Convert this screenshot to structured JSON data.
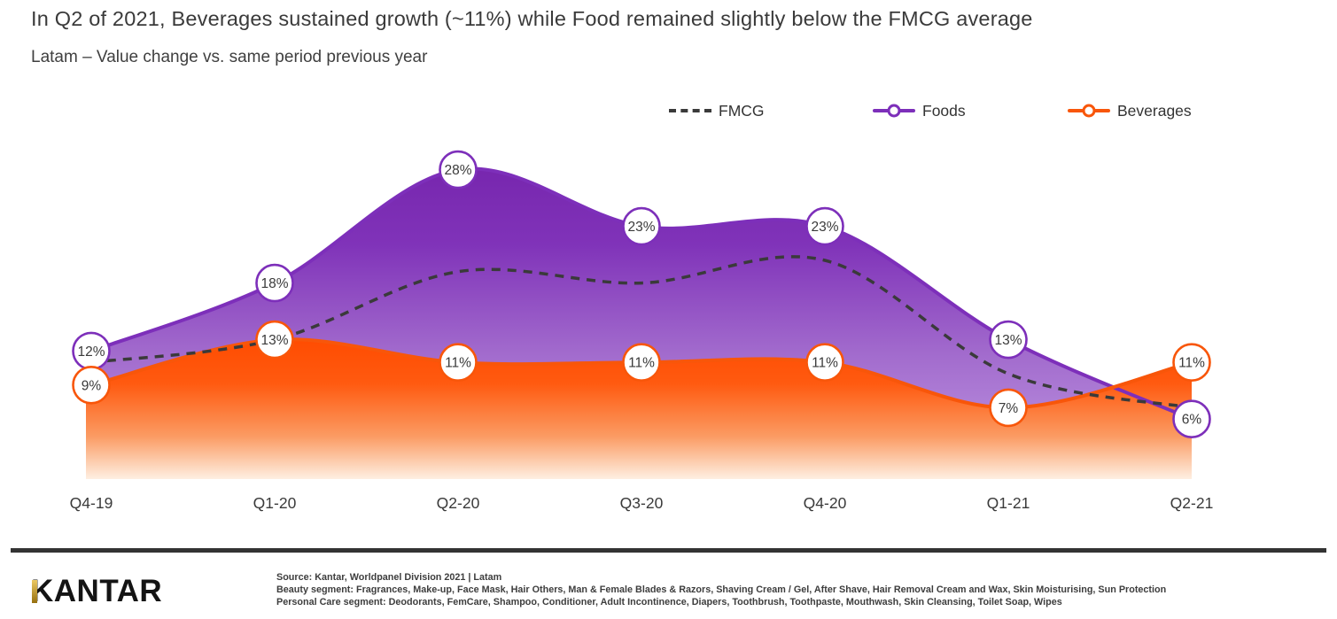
{
  "header": {
    "title": "In Q2 of 2021, Beverages sustained growth (~11%) while Food remained slightly below the FMCG average",
    "subtitle": "Latam – Value change vs. same period previous year"
  },
  "legend": {
    "items": [
      {
        "label": "FMCG",
        "style": "dashed",
        "color": "#3a3a3a"
      },
      {
        "label": "Foods",
        "style": "line-circle",
        "color": "#7d2fba"
      },
      {
        "label": "Beverages",
        "style": "line-circle",
        "color": "#f8560a"
      }
    ]
  },
  "chart_data": {
    "type": "area",
    "title": "Latam – Value change vs. same period previous year",
    "categories": [
      "Q4-19",
      "Q1-20",
      "Q2-20",
      "Q3-20",
      "Q4-20",
      "Q1-21",
      "Q2-21"
    ],
    "unit": "%",
    "ylim": [
      0,
      32
    ],
    "grid": false,
    "legend_position": "top",
    "series": [
      {
        "name": "FMCG",
        "type": "dashed-line",
        "color": "#3a3a3a",
        "values": [
          11,
          13,
          19,
          18,
          20,
          10,
          7
        ],
        "point_labels": false
      },
      {
        "name": "Foods",
        "type": "area-line",
        "color": "#7d2fba",
        "fill_top": "#7726ae",
        "fill_bottom": "#c19ce4",
        "values": [
          12,
          18,
          28,
          23,
          23,
          13,
          6
        ],
        "point_labels": true
      },
      {
        "name": "Beverages",
        "type": "area-line",
        "color": "#f8560a",
        "fill_top": "#ff4b00",
        "fill_bottom": "#feefe2",
        "values": [
          9,
          13,
          11,
          11,
          11,
          7,
          11
        ],
        "point_labels": true
      }
    ]
  },
  "footer": {
    "logo": "KANTAR",
    "source_lines": [
      "Source: Kantar, Worldpanel  Division 2021 | Latam",
      "Beauty segment: Fragrances, Make-up, Face Mask, Hair Others, Man & Female Blades & Razors, Shaving Cream / Gel, After Shave, Hair Removal Cream and Wax, Skin Moisturising, Sun Protection",
      "Personal Care segment: Deodorants, FemCare, Shampoo, Conditioner, Adult Incontinence, Diapers, Toothbrush, Toothpaste, Mouthwash, Skin Cleansing, Toilet Soap, Wipes"
    ]
  },
  "colors": {
    "foods_purple": "#7d2fba",
    "beverages_orange": "#f8560a",
    "fmcg_dark": "#3a3a3a",
    "logo_gold": "#c99e3a",
    "text": "#3a3a3a"
  }
}
